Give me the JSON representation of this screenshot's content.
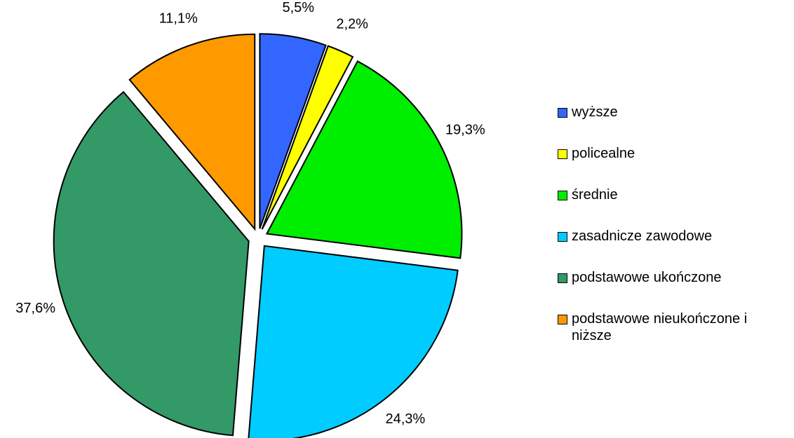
{
  "chart_data": {
    "type": "pie",
    "categories": [
      "wyższe",
      "policealne",
      "średnie",
      "zasadnicze zawodowe",
      "podstawowe ukończone",
      "podstawowe nieukończone i niższe"
    ],
    "values": [
      5.5,
      2.2,
      19.3,
      24.3,
      37.6,
      11.1
    ],
    "value_labels": [
      "5,5%",
      "2,2%",
      "19,3%",
      "24,3%",
      "37,6%",
      "11,1%"
    ],
    "colors": [
      "#3366ff",
      "#ffff00",
      "#00ee00",
      "#00ccff",
      "#339966",
      "#ff9900"
    ],
    "legend": "right"
  }
}
